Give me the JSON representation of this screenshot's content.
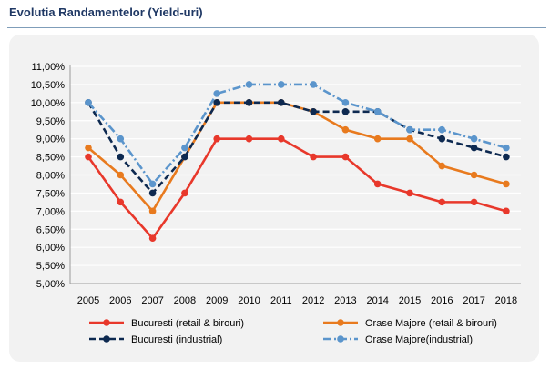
{
  "header": {
    "title": "Evolutia Randamentelor (Yield-uri)"
  },
  "chart_data": {
    "type": "line",
    "x": [
      2005,
      2006,
      2007,
      2008,
      2009,
      2010,
      2011,
      2012,
      2013,
      2014,
      2015,
      2016,
      2017,
      2018
    ],
    "ylim": [
      5.0,
      11.0
    ],
    "yticks": [
      "5,00%",
      "5,50%",
      "6,00%",
      "6,50%",
      "7,00%",
      "7,50%",
      "8,00%",
      "8,50%",
      "9,00%",
      "9,50%",
      "10,00%",
      "10,50%",
      "11,00%"
    ],
    "grid": true,
    "legend_position": "bottom",
    "series": [
      {
        "name": "Bucuresti (retail & birouri)",
        "color": "#e8382b",
        "dash": "solid",
        "values": [
          8.5,
          7.25,
          6.25,
          7.5,
          9.0,
          9.0,
          9.0,
          8.5,
          8.5,
          7.75,
          7.5,
          7.25,
          7.25,
          7.0
        ]
      },
      {
        "name": "Orase Majore (retail & birouri)",
        "color": "#e87a1e",
        "dash": "solid",
        "values": [
          8.75,
          8.0,
          7.0,
          8.5,
          10.0,
          10.0,
          10.0,
          9.75,
          9.25,
          9.0,
          9.0,
          8.25,
          8.0,
          7.75
        ]
      },
      {
        "name": "Bucuresti (industrial)",
        "color": "#0d2950",
        "dash": "dash",
        "values": [
          10.0,
          8.5,
          7.5,
          8.5,
          10.0,
          10.0,
          10.0,
          9.75,
          9.75,
          9.75,
          9.25,
          9.0,
          8.75,
          8.5
        ]
      },
      {
        "name": "Orase Majore(industrial)",
        "color": "#5b95cc",
        "dash": "dashdot",
        "values": [
          10.0,
          9.0,
          7.75,
          8.75,
          10.25,
          10.5,
          10.5,
          10.5,
          10.0,
          9.75,
          9.25,
          9.25,
          9.0,
          8.75
        ]
      }
    ]
  }
}
